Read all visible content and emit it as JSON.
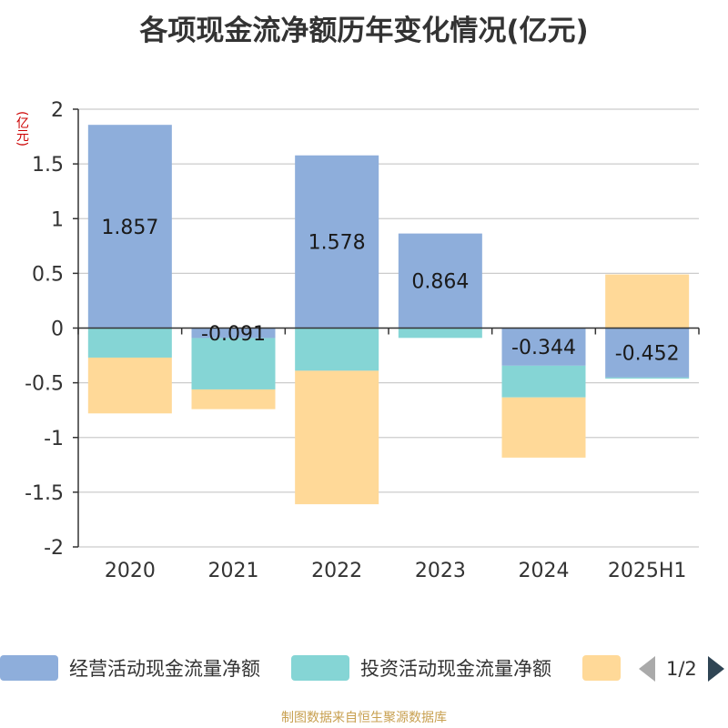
{
  "title": "各项现金流净额历年变化情况(亿元)",
  "unit_label": "(亿元)",
  "source": "制图数据来自恒生聚源数据库",
  "legend": {
    "items": [
      {
        "label": "经营活动现金流量净额",
        "color": "#8eaedb"
      },
      {
        "label": "投资活动现金流量净额",
        "color": "#85d5d5"
      },
      {
        "label": "",
        "color": "#ffd998"
      }
    ],
    "page": "1/2"
  },
  "chart_data": {
    "type": "bar",
    "stacked": true,
    "categories": [
      "2020",
      "2021",
      "2022",
      "2023",
      "2024",
      "2025H1"
    ],
    "series": [
      {
        "name": "经营活动现金流量净额",
        "color": "#8eaedb",
        "values": [
          1.857,
          -0.091,
          1.578,
          0.864,
          -0.344,
          -0.452
        ],
        "labels": [
          "1.857",
          "-0.091",
          "1.578",
          "0.864",
          "-0.344",
          "-0.452"
        ]
      },
      {
        "name": "投资活动现金流量净额",
        "color": "#85d5d5",
        "values": [
          -0.27,
          -0.47,
          -0.39,
          -0.09,
          -0.29,
          -0.01
        ]
      },
      {
        "name": "",
        "color": "#ffd998",
        "values": [
          -0.51,
          -0.18,
          -1.22,
          0,
          -0.55,
          0.49
        ]
      }
    ],
    "yticks": [
      "2",
      "1.5",
      "1",
      "0.5",
      "0",
      "-0.5",
      "-1",
      "-1.5",
      "-2"
    ],
    "ylim": [
      -2,
      2
    ],
    "grid": true
  }
}
